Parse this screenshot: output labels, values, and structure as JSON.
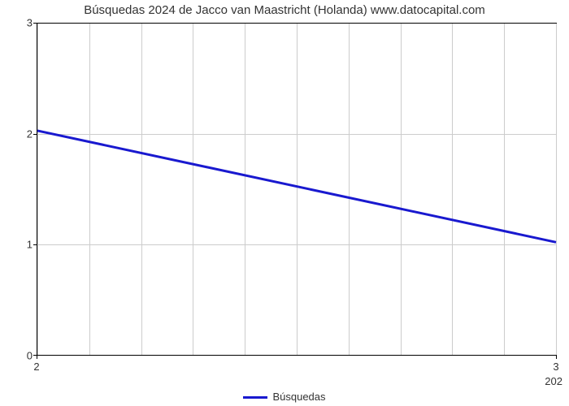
{
  "chart": {
    "type": "line",
    "title": "Búsquedas 2024 de Jacco van Maastricht (Holanda) www.datocapital.com",
    "title_fontsize": 15,
    "title_color": "#333333",
    "background_color": "#ffffff",
    "plot_border_color": "#000000",
    "grid_color": "#cccccc",
    "y": {
      "min": 0,
      "max": 3,
      "ticks": [
        0,
        1,
        2,
        3
      ],
      "label_fontsize": 13
    },
    "x": {
      "ticks_left": "2",
      "ticks_mid": "3",
      "ticks_right": "202",
      "label_fontsize": 13
    },
    "series": {
      "name": "Búsquedas",
      "color": "#1919cf",
      "line_width": 3,
      "points": [
        {
          "x_frac": 0.0,
          "y": 2.03
        },
        {
          "x_frac": 1.0,
          "y": 1.02
        }
      ]
    },
    "legend": {
      "label": "Búsquedas",
      "position": "bottom-center"
    },
    "grid": {
      "v_count": 11,
      "h_ticks": [
        0,
        1,
        2,
        3
      ]
    }
  }
}
